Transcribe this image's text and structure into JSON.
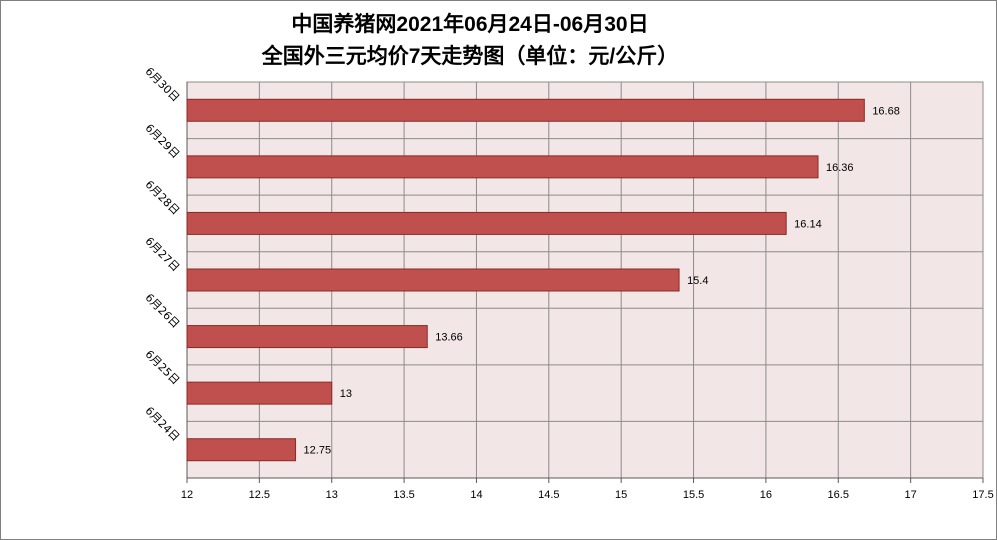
{
  "chart_data": {
    "type": "bar",
    "orientation": "horizontal",
    "title": "中国养猪网2021年06月24日-06月30日",
    "subtitle": "全国外三元均价7天走势图（单位：元/公斤）",
    "categories": [
      "6月30日",
      "6月29日",
      "6月28日",
      "6月27日",
      "6月26日",
      "6月25日",
      "6月24日"
    ],
    "values": [
      16.68,
      16.36,
      16.14,
      15.4,
      13.66,
      13,
      12.75
    ],
    "value_labels": [
      "16.68",
      "16.36",
      "16.14",
      "15.4",
      "13.66",
      "13",
      "12.75"
    ],
    "xlim": [
      12,
      17.5
    ],
    "xticks": [
      12,
      12.5,
      13,
      13.5,
      14,
      14.5,
      15,
      15.5,
      16,
      16.5,
      17,
      17.5
    ],
    "xtick_labels": [
      "12",
      "12.5",
      "13",
      "13.5",
      "14",
      "14.5",
      "15",
      "15.5",
      "16",
      "16.5",
      "17",
      "17.5"
    ],
    "grid": true,
    "legend": "none",
    "colors": {
      "bar": "#c0504d",
      "bar_edge": "#8b2a28",
      "plot_bg": "#f2e6e6",
      "grid": "#8c8c8c"
    }
  }
}
